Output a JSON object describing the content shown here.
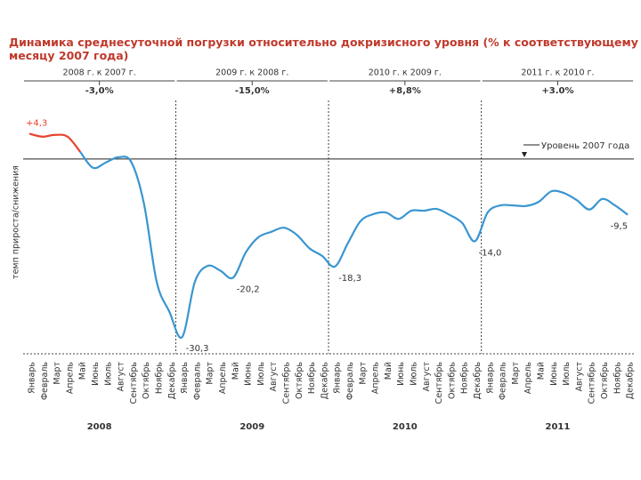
{
  "chart_data": {
    "type": "line",
    "title_lines": [
      "Динамика среднесуточной погрузки относительно докризисного уровня (% к соответствующему",
      "месяцу 2007 года)"
    ],
    "ylabel": "темп прироста/снижения",
    "categories": [
      "Январь",
      "Февраль",
      "Март",
      "Апрель",
      "Май",
      "Июнь",
      "Июль",
      "Август",
      "Сентябрь",
      "Октябрь",
      "Ноябрь",
      "Декабрь",
      "Январь",
      "Февраль",
      "Март",
      "Апрель",
      "Май",
      "Июнь",
      "Июль",
      "Август",
      "Сентябрь",
      "Октябрь",
      "Ноябрь",
      "Декабрь",
      "Январь",
      "Февраль",
      "Март",
      "Апрель",
      "Май",
      "Июнь",
      "Июль",
      "Август",
      "Сентябрь",
      "Октябрь",
      "Ноябрь",
      "Декабрь",
      "Январь",
      "Февраль",
      "Март",
      "Апрель",
      "Май",
      "Июнь",
      "Июль",
      "Август",
      "Сентябрь",
      "Октябрь",
      "Ноябрь",
      "Декабрь"
    ],
    "years": [
      "2008",
      "2009",
      "2010",
      "2011"
    ],
    "periods": [
      {
        "label": "2008 г. к 2007 г.",
        "value": "-3,0%"
      },
      {
        "label": "2009 г. к 2008 г.",
        "value": "-15,0%"
      },
      {
        "label": "2010 г. к 2009 г.",
        "value": "+8,8%"
      },
      {
        "label": "2011 г. к 2010 г.",
        "value": "+3.0%"
      }
    ],
    "reference": {
      "value": 0,
      "label": "Уровень 2007 года"
    },
    "series": [
      {
        "color": "#e8412c",
        "values": [
          4.3,
          3.8,
          4.1,
          3.8,
          1.2,
          null,
          null,
          null,
          null,
          null,
          null,
          null,
          null,
          null,
          null,
          null,
          null,
          null,
          null,
          null,
          null,
          null,
          null,
          null,
          null,
          null,
          null,
          null,
          null,
          null,
          null,
          null,
          null,
          null,
          null,
          null,
          null,
          null,
          null,
          null,
          null,
          null,
          null,
          null,
          null,
          null,
          null,
          null
        ],
        "value_labels": [
          "+4,3",
          null,
          null,
          null,
          null,
          null,
          null,
          null,
          null,
          null,
          null,
          null,
          null,
          null,
          null,
          null,
          null,
          null,
          null,
          null,
          null,
          null,
          null,
          null,
          null,
          null,
          null,
          null,
          null,
          null,
          null,
          null,
          null,
          null,
          null,
          null,
          null,
          null,
          null,
          null,
          null,
          null,
          null,
          null,
          null,
          null,
          null,
          null
        ]
      },
      {
        "color": "#3a96d0",
        "values": [
          null,
          null,
          null,
          null,
          1.2,
          -1.5,
          -0.6,
          0.3,
          -0.5,
          -7.6,
          -20.9,
          -26,
          -30.3,
          -20.9,
          -18.2,
          -19,
          -20.2,
          -15.9,
          -13.3,
          -12.4,
          -11.7,
          -12.9,
          -15.2,
          -16.5,
          -18.3,
          -14.4,
          -10.6,
          -9.4,
          -9.1,
          -10.2,
          -8.8,
          -8.8,
          -8.5,
          -9.5,
          -10.9,
          -14.0,
          -9.1,
          -7.9,
          -7.9,
          -8.0,
          -7.3,
          -5.5,
          -5.8,
          -7.0,
          -8.6,
          -6.8,
          -7.9,
          -9.5
        ],
        "value_labels": [
          null,
          null,
          null,
          null,
          null,
          null,
          null,
          null,
          null,
          null,
          null,
          null,
          "-30,3",
          null,
          null,
          null,
          "-20,2",
          null,
          null,
          null,
          null,
          null,
          null,
          null,
          "-18,3",
          null,
          null,
          null,
          null,
          null,
          null,
          null,
          null,
          null,
          null,
          "-14,0",
          null,
          null,
          null,
          null,
          null,
          null,
          null,
          null,
          null,
          null,
          null,
          "-9,5"
        ]
      }
    ],
    "ylim": [
      -33,
      8
    ]
  }
}
